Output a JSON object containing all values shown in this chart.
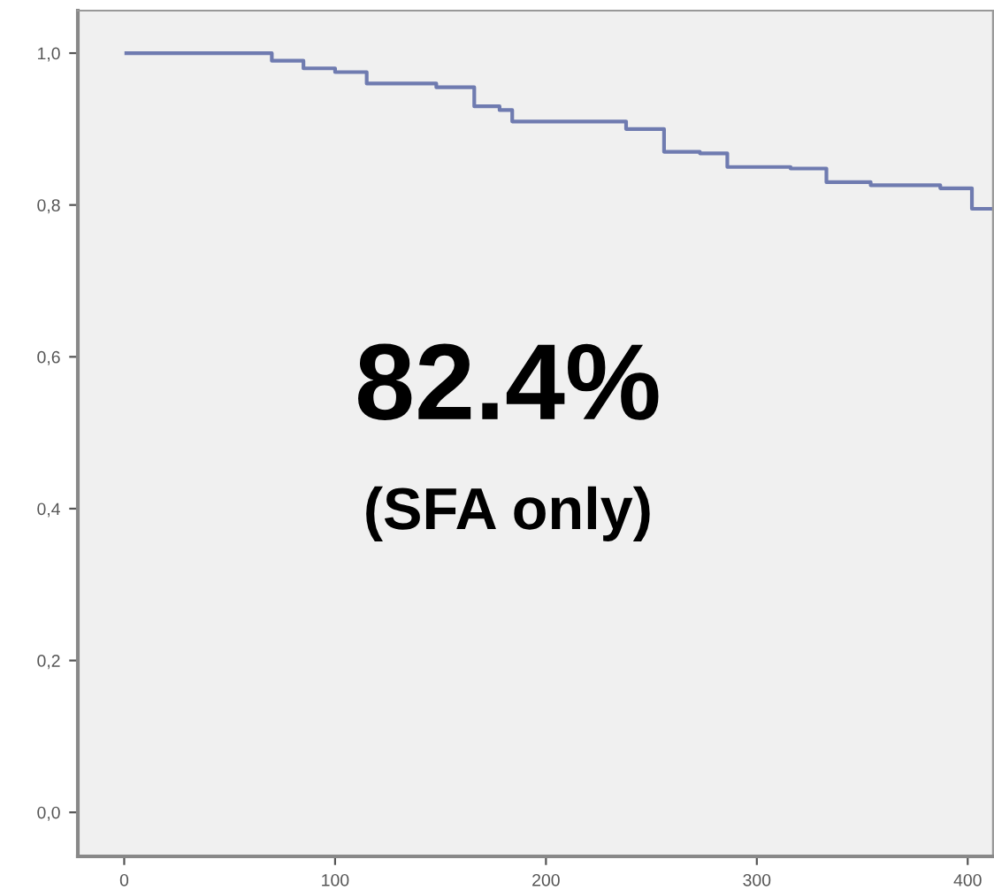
{
  "chart_data": {
    "type": "step",
    "x": [
      1,
      46,
      70,
      85,
      100,
      115,
      148,
      166,
      178,
      184,
      238,
      256,
      273,
      286,
      316,
      333,
      354,
      387,
      402,
      411
    ],
    "series": [
      {
        "color": "#6f7bb0",
        "values": [
          1.0,
          1.0,
          0.99,
          0.98,
          0.975,
          0.96,
          0.955,
          0.93,
          0.925,
          0.91,
          0.9,
          0.87,
          0.868,
          0.85,
          0.848,
          0.83,
          0.826,
          0.822,
          0.795,
          0.795
        ]
      }
    ],
    "xlim": [
      -22,
      412
    ],
    "ylim": [
      -0.058,
      1.056
    ],
    "xticks": [
      0,
      100,
      200,
      300,
      400
    ],
    "yticks": [
      {
        "value": 0.0,
        "label": "0,0"
      },
      {
        "value": 0.2,
        "label": "0,2"
      },
      {
        "value": 0.4,
        "label": "0,4"
      },
      {
        "value": 0.6,
        "label": "0,6"
      },
      {
        "value": 0.8,
        "label": "0,8"
      },
      {
        "value": 1.0,
        "label": "1,0"
      }
    ],
    "annotations": [
      "82.4%",
      "(SFA only)"
    ],
    "grid": false,
    "legend": false
  }
}
